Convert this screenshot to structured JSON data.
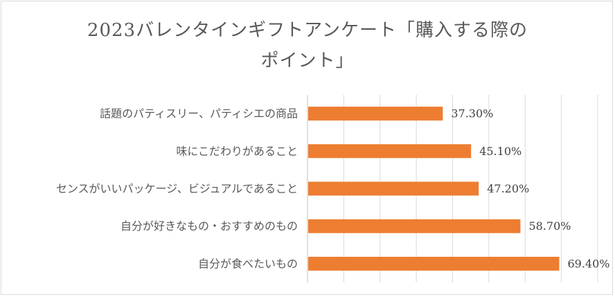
{
  "chart_data": {
    "type": "bar",
    "orientation": "horizontal",
    "title_lines": [
      "2023バレンタインギフトアンケート「購入する際の",
      "ポイント」"
    ],
    "categories": [
      "話題のパティスリー、パティシエの商品",
      "味にこだわりがあること",
      "センスがいいパッケージ、ビジュアルであること",
      "自分が好きなもの・おすすめのもの",
      "自分が食べたいもの"
    ],
    "values": [
      37.3,
      45.1,
      47.2,
      58.7,
      69.4
    ],
    "value_labels": [
      "37.30%",
      "45.10%",
      "47.20%",
      "58.70%",
      "69.40%"
    ],
    "xlim": [
      0,
      80
    ],
    "grid": true,
    "legend": "none",
    "bar_color": "#ED7D31",
    "grid_color": "#d9d9d9",
    "axis_line_color": "#bfbfbf"
  }
}
